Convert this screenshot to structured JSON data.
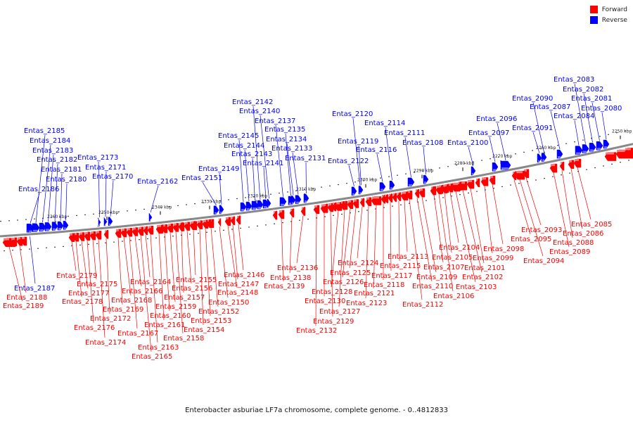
{
  "legend": [
    {
      "label": "Forward",
      "color": "#ff0000"
    },
    {
      "label": "Reverse",
      "color": "#0000ff"
    }
  ],
  "caption": "Enterobacter asburiae LF7a chromosome, complete genome. - 0..4812833",
  "colors": {
    "forward": "#ff0000",
    "reverse": "#0000ff",
    "backbone": "#888888",
    "text": "#111111"
  },
  "ticks": [
    "2250 kbp",
    "2260 kbp",
    "2270 kbp",
    "2280 kbp",
    "2290 kbp",
    "2300 kbp",
    "2310 kbp",
    "2320 kbp",
    "2330 kbp",
    "2340 kbp",
    "2350 kbp",
    "2360 kbp"
  ],
  "reverse_genes": [
    "Entas_2080",
    "Entas_2081",
    "Entas_2082",
    "Entas_2083",
    "Entas_2084",
    "Entas_2087",
    "Entas_2090",
    "Entas_2091",
    "Entas_2096",
    "Entas_2097",
    "Entas_2100",
    "Entas_2108",
    "Entas_2111",
    "Entas_2114",
    "Entas_2116",
    "Entas_2119",
    "Entas_2120",
    "Entas_2122",
    "Entas_2131",
    "Entas_2133",
    "Entas_2134",
    "Entas_2135",
    "Entas_2137",
    "Entas_2140",
    "Entas_2141",
    "Entas_2142",
    "Entas_2143",
    "Entas_2144",
    "Entas_2145",
    "Entas_2149",
    "Entas_2151",
    "Entas_2162",
    "Entas_2170",
    "Entas_2171",
    "Entas_2173",
    "Entas_2180",
    "Entas_2181",
    "Entas_2182",
    "Entas_2183",
    "Entas_2184",
    "Entas_2185",
    "Entas_2186",
    "Entas_2187"
  ],
  "forward_genes": [
    "Entas_2085",
    "Entas_2086",
    "Entas_2088",
    "Entas_2089",
    "Entas_2093",
    "Entas_2094",
    "Entas_2095",
    "Entas_2098",
    "Entas_2099",
    "Entas_2101",
    "Entas_2102",
    "Entas_2103",
    "Entas_2104",
    "Entas_2105",
    "Entas_2106",
    "Entas_2107",
    "Entas_2109",
    "Entas_2110",
    "Entas_2112",
    "Entas_2113",
    "Entas_2115",
    "Entas_2117",
    "Entas_2118",
    "Entas_2121",
    "Entas_2123",
    "Entas_2124",
    "Entas_2125",
    "Entas_2126",
    "Entas_2127",
    "Entas_2128",
    "Entas_2129",
    "Entas_2130",
    "Entas_2132",
    "Entas_2136",
    "Entas_2138",
    "Entas_2139",
    "Entas_2146",
    "Entas_2147",
    "Entas_2148",
    "Entas_2150",
    "Entas_2152",
    "Entas_2153",
    "Entas_2154",
    "Entas_2155",
    "Entas_2156",
    "Entas_2157",
    "Entas_2158",
    "Entas_2159",
    "Entas_2160",
    "Entas_2161",
    "Entas_2163",
    "Entas_2164",
    "Entas_2165",
    "Entas_2166",
    "Entas_2167",
    "Entas_2168",
    "Entas_2169",
    "Entas_2172",
    "Entas_2174",
    "Entas_2175",
    "Entas_2176",
    "Entas_2177",
    "Entas_2178",
    "Entas_2179",
    "Entas_2188",
    "Entas_2189"
  ]
}
